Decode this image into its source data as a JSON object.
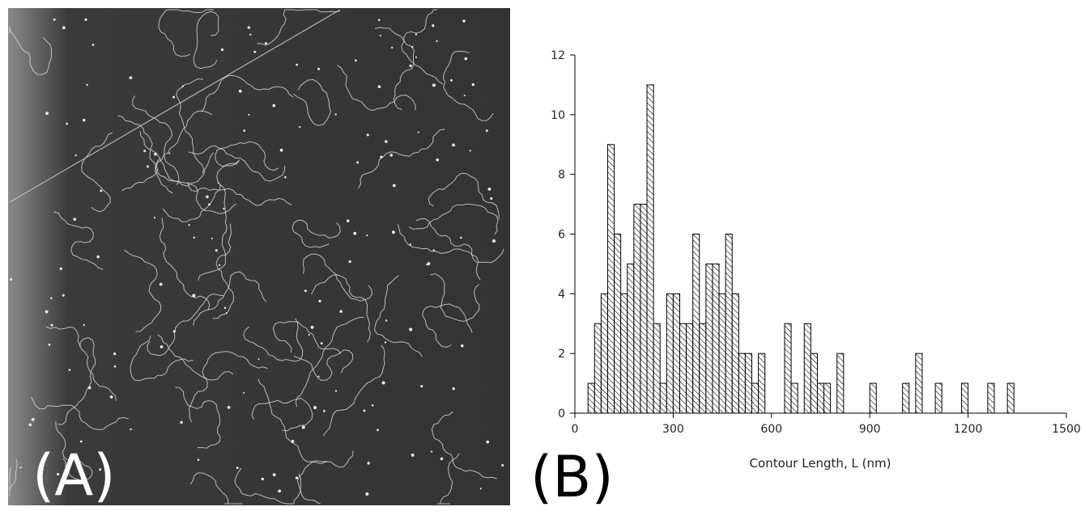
{
  "panel_labels": [
    "(A)",
    "(B)"
  ],
  "chart_data": {
    "type": "histogram",
    "xlabel": "Contour Length, L (nm)",
    "bins": [
      40,
      60,
      80,
      100,
      120,
      140,
      160,
      180,
      200,
      220,
      240,
      260,
      280,
      300,
      320,
      340,
      360,
      380,
      400,
      420,
      440,
      460,
      480,
      500,
      520,
      540,
      560,
      580,
      600,
      620,
      640,
      660,
      680,
      700,
      720,
      740,
      760,
      780,
      800,
      820,
      840,
      860,
      880,
      900,
      920,
      940,
      960,
      980,
      1000,
      1020,
      1040,
      1060,
      1080,
      1100,
      1120,
      1140,
      1160,
      1180,
      1200,
      1220,
      1240,
      1260,
      1280,
      1300,
      1320,
      1340
    ],
    "values": [
      1,
      3,
      4,
      9,
      6,
      4,
      5,
      7,
      7,
      11,
      3,
      1,
      4,
      4,
      3,
      3,
      6,
      3,
      5,
      5,
      4,
      6,
      4,
      2,
      2,
      1,
      2,
      0,
      0,
      0,
      3,
      1,
      0,
      3,
      2,
      1,
      1,
      0,
      2,
      0,
      0,
      0,
      0,
      1,
      0,
      0,
      0,
      0,
      1,
      0,
      2,
      0,
      0,
      1,
      0,
      0,
      0,
      1,
      0,
      0,
      0,
      1,
      0,
      0,
      1
    ],
    "color": "#000000",
    "xlim": [
      0,
      1500
    ],
    "xticks": [
      0,
      300,
      600,
      900,
      1200,
      1500
    ],
    "ylim": [
      0,
      12
    ],
    "yticks": [
      0,
      2,
      4,
      6,
      8,
      10,
      12
    ]
  }
}
